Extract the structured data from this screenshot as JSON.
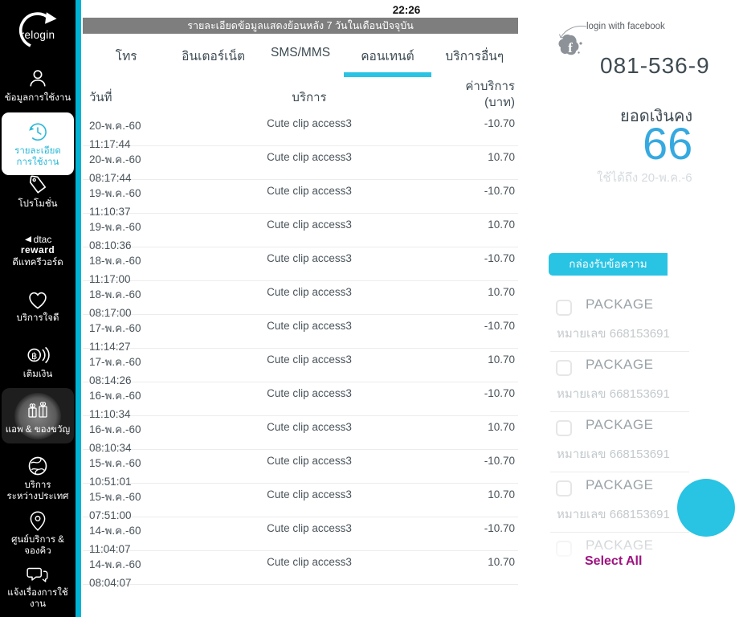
{
  "status": {
    "time": "22:26"
  },
  "sidebar": {
    "logo_label": "relogin",
    "items": [
      {
        "label": "ข้อมูลการใช้งาน",
        "icon": "user-icon",
        "active": false
      },
      {
        "label": "รายละเอียด\nการใช้งาน",
        "icon": "history-clock-icon",
        "active": true
      },
      {
        "label": "โปรโมชั่น",
        "icon": "tag-icon",
        "active": false
      },
      {
        "label": "ดีแทครีวอร์ด",
        "icon": "dtac-reward-logo",
        "logo_line1": "dtac",
        "logo_line2": "reward",
        "active": false
      },
      {
        "label": "บริการใจดี",
        "icon": "heart-icon",
        "active": false
      },
      {
        "label": "เติมเงิน",
        "icon": "coins-icon",
        "active": false
      },
      {
        "label": "แอพ & ของขวัญ",
        "icon": "gift-icon",
        "pressed": true
      },
      {
        "label": "บริการ\nระหว่างประเทศ",
        "icon": "globe-icon",
        "active": false
      },
      {
        "label": "ศูนย์บริการ &\nจองคิว",
        "icon": "location-pin-icon",
        "active": false
      },
      {
        "label": "แจ้งเรื่องการใช้งาน",
        "icon": "chat-icon",
        "active": false
      }
    ]
  },
  "main": {
    "banner": "รายละเอียดข้อมูลแสดงย้อนหลัง 7 วันในเดือนปัจจุบัน",
    "tabs": [
      {
        "label": "โทร",
        "active": false
      },
      {
        "label": "อินเตอร์เน็ต",
        "active": false
      },
      {
        "label": "SMS/MMS",
        "active": false
      },
      {
        "label": "คอนเทนต์",
        "active": true
      },
      {
        "label": "บริการอื่นๆ",
        "active": false
      }
    ],
    "table": {
      "col_date": "วันที่",
      "col_service": "บริการ",
      "col_fee_line1": "ค่าบริการ",
      "col_fee_line2": "(บาท)",
      "rows": [
        {
          "date": "20-พ.ค.-60",
          "time": "11:17:44",
          "service": "Cute clip access3",
          "amount": "-10.70"
        },
        {
          "date": "20-พ.ค.-60",
          "time": "08:17:44",
          "service": "Cute clip access3",
          "amount": "10.70"
        },
        {
          "date": "19-พ.ค.-60",
          "time": "11:10:37",
          "service": "Cute clip access3",
          "amount": "-10.70"
        },
        {
          "date": "19-พ.ค.-60",
          "time": "08:10:36",
          "service": "Cute clip access3",
          "amount": "10.70"
        },
        {
          "date": "18-พ.ค.-60",
          "time": "11:17:00",
          "service": "Cute clip access3",
          "amount": "-10.70"
        },
        {
          "date": "18-พ.ค.-60",
          "time": "08:17:00",
          "service": "Cute clip access3",
          "amount": "10.70"
        },
        {
          "date": "17-พ.ค.-60",
          "time": "11:14:27",
          "service": "Cute clip access3",
          "amount": "-10.70"
        },
        {
          "date": "17-พ.ค.-60",
          "time": "08:14:26",
          "service": "Cute clip access3",
          "amount": "10.70"
        },
        {
          "date": "16-พ.ค.-60",
          "time": "11:10:34",
          "service": "Cute clip access3",
          "amount": "-10.70"
        },
        {
          "date": "16-พ.ค.-60",
          "time": "08:10:34",
          "service": "Cute clip access3",
          "amount": "10.70"
        },
        {
          "date": "15-พ.ค.-60",
          "time": "10:51:01",
          "service": "Cute clip access3",
          "amount": "-10.70"
        },
        {
          "date": "15-พ.ค.-60",
          "time": "07:51:00",
          "service": "Cute clip access3",
          "amount": "10.70"
        },
        {
          "date": "14-พ.ค.-60",
          "time": "11:04:07",
          "service": "Cute clip access3",
          "amount": "-10.70"
        },
        {
          "date": "14-พ.ค.-60",
          "time": "08:04:07",
          "service": "Cute clip access3",
          "amount": "10.70"
        }
      ]
    }
  },
  "right_panel": {
    "facebook_login_label": "login with facebook",
    "phone_number": "081-536-9",
    "balance_label": "ยอดเงินคง",
    "balance_value": "66",
    "valid_until": "ใช้ได้ถึง 20-พ.ค.-6",
    "inbox_tab_label": "กล่องรับข้อความ",
    "packages": [
      {
        "title": "PACKAGE",
        "subtitle": "หมายเลข 668153691"
      },
      {
        "title": "PACKAGE",
        "subtitle": "หมายเลข 668153691"
      },
      {
        "title": "PACKAGE",
        "subtitle": "หมายเลข 668153691"
      },
      {
        "title": "PACKAGE",
        "subtitle": "หมายเลข 668153691"
      },
      {
        "title": "PACKAGE",
        "subtitle": ""
      }
    ],
    "select_all_label": "Select All"
  },
  "colors": {
    "accent_cyan": "#29c3e3",
    "sidebar_strip": "#00b3d4",
    "balance_blue": "#35a9e0",
    "select_all_magenta": "#9e1380",
    "banner_gray": "#7e7e7e"
  }
}
